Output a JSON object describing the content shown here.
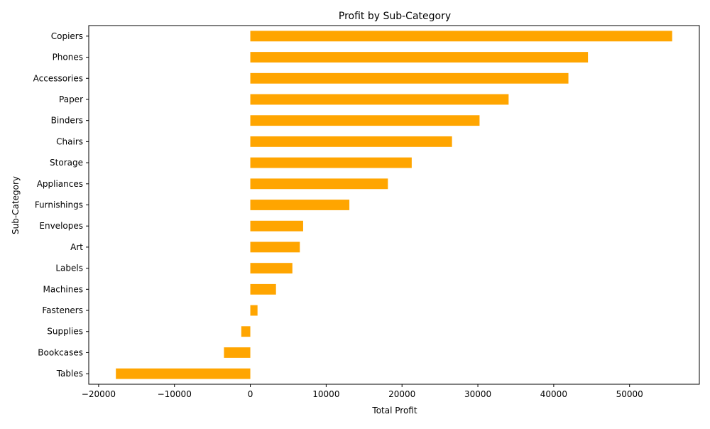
{
  "chart_data": {
    "type": "bar",
    "orientation": "horizontal",
    "title": "Profit by Sub-Category",
    "xlabel": "Total Profit",
    "ylabel": "Sub-Category",
    "xlim": [
      -21300,
      59200
    ],
    "xticks": [
      -20000,
      -10000,
      0,
      10000,
      20000,
      30000,
      40000,
      50000
    ],
    "xtick_labels": [
      "−20000",
      "−10000",
      "0",
      "10000",
      "20000",
      "30000",
      "40000",
      "50000"
    ],
    "grid": false,
    "bar_color": "#FFA500",
    "categories": [
      "Copiers",
      "Phones",
      "Accessories",
      "Paper",
      "Binders",
      "Chairs",
      "Storage",
      "Appliances",
      "Furnishings",
      "Envelopes",
      "Art",
      "Labels",
      "Machines",
      "Fasteners",
      "Supplies",
      "Bookcases",
      "Tables"
    ],
    "values": [
      55618,
      44516,
      41937,
      34054,
      30222,
      26590,
      21279,
      18138,
      13059,
      6964,
      6528,
      5546,
      3385,
      950,
      -1189,
      -3473,
      -17725
    ]
  }
}
